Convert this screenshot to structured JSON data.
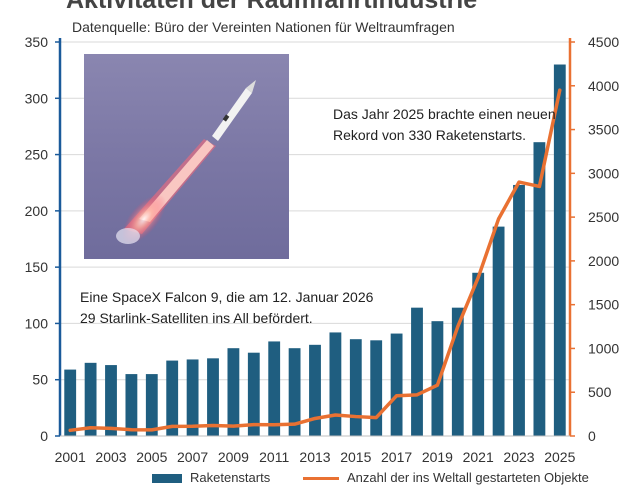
{
  "title": "Aktivitäten der Raumfahrtindustrie",
  "subtitle": "Datenquelle: Büro der Vereinten Nationen für Weltraumfragen",
  "notes": {
    "record": "Das Jahr 2025 brachte einen neuen Rekord von 330 Raketenstarts.",
    "photo_caption": "Eine SpaceX Falcon 9, die am 12. Januar 2026 29 Starlink-Satelliten ins All befördert."
  },
  "colors": {
    "bars": "#1f5e80",
    "line": "#e97132",
    "left_axis": "#1a5a9a",
    "right_axis": "#e97132"
  },
  "photo": {
    "icon": "rocket-launch-photo"
  },
  "chart_data": {
    "type": "bar",
    "categories": [
      2001,
      2002,
      2003,
      2004,
      2005,
      2006,
      2007,
      2008,
      2009,
      2010,
      2011,
      2012,
      2013,
      2014,
      2015,
      2016,
      2017,
      2018,
      2019,
      2020,
      2021,
      2022,
      2023,
      2024,
      2025
    ],
    "x_tick_labels": [
      "2001",
      "2003",
      "2005",
      "2007",
      "2009",
      "2011",
      "2013",
      "2015",
      "2017",
      "2019",
      "2021",
      "2023",
      "2025"
    ],
    "series": [
      {
        "name": "Raketenstarts",
        "type": "bar",
        "axis": "left",
        "values": [
          59,
          65,
          63,
          55,
          55,
          67,
          68,
          69,
          78,
          74,
          84,
          78,
          81,
          92,
          86,
          85,
          91,
          114,
          102,
          114,
          145,
          186,
          223,
          261,
          330
        ]
      },
      {
        "name": "Anzahl der ins Weltall gestarteten Objekte",
        "type": "line",
        "axis": "right",
        "values": [
          65,
          94,
          87,
          72,
          70,
          110,
          112,
          120,
          113,
          130,
          128,
          135,
          200,
          240,
          222,
          210,
          460,
          470,
          580,
          1250,
          1810,
          2480,
          2900,
          2850,
          3950
        ]
      }
    ],
    "y_left": {
      "min": 0,
      "max": 350,
      "ticks": [
        0,
        50,
        100,
        150,
        200,
        250,
        300,
        350
      ]
    },
    "y_right": {
      "min": 0,
      "max": 4500,
      "ticks": [
        0,
        500,
        1000,
        1500,
        2000,
        2500,
        3000,
        3500,
        4000,
        4500
      ]
    },
    "legend": [
      "Raketenstarts",
      "Anzahl der ins Weltall gestarteten Objekte"
    ],
    "legend_position": "bottom"
  }
}
